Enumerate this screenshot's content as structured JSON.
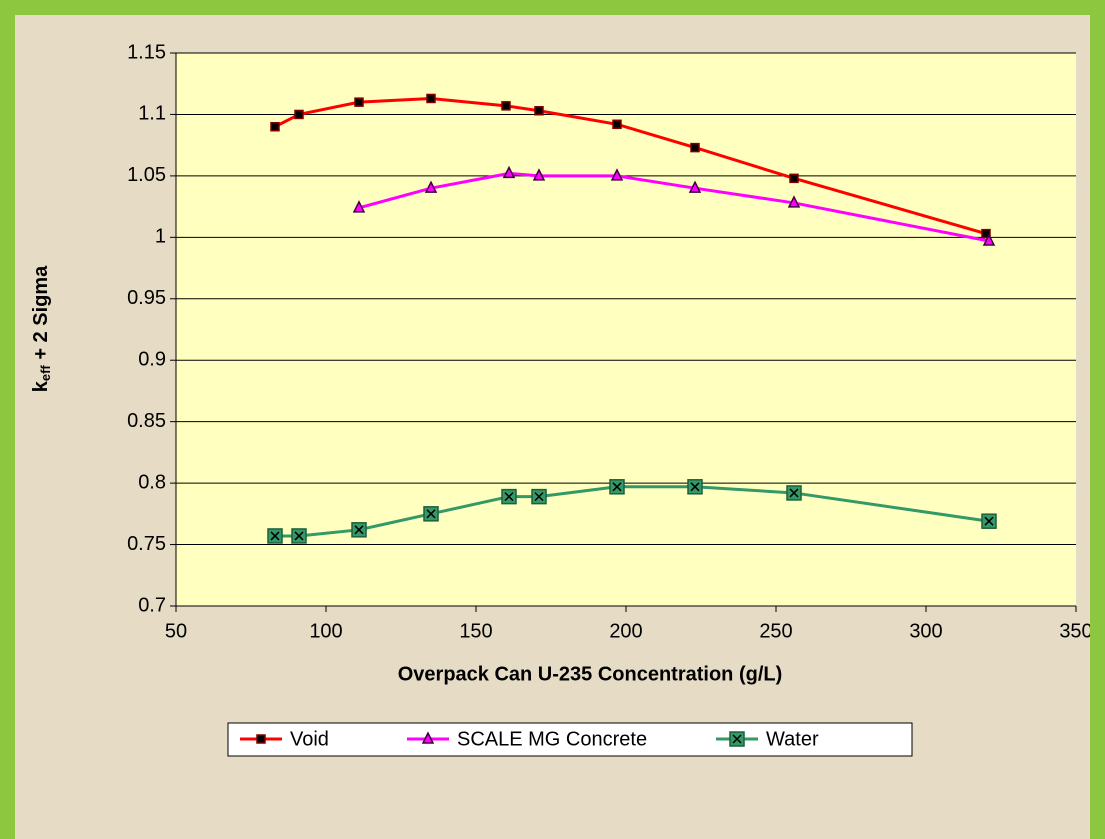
{
  "chart_data": {
    "type": "line",
    "xlabel": "Overpack Can U-235 Concentration (g/L)",
    "ylabel": {
      "base": "k",
      "sub": "eff",
      "rest": " + 2 Sigma"
    },
    "xlim": [
      50,
      350
    ],
    "xticks": [
      50,
      100,
      150,
      200,
      250,
      300,
      350
    ],
    "ylim": [
      0.7,
      1.15
    ],
    "yticks": [
      0.7,
      0.75,
      0.8,
      0.85,
      0.9,
      0.95,
      1,
      1.05,
      1.1,
      1.15
    ],
    "grid": true,
    "legend": "bottom",
    "series": [
      {
        "name": "Void",
        "color": "#ff0000",
        "marker": "square",
        "x": [
          83,
          91,
          111,
          135,
          160,
          171,
          197,
          223,
          256,
          320
        ],
        "values": [
          1.09,
          1.1,
          1.11,
          1.113,
          1.107,
          1.103,
          1.092,
          1.073,
          1.048,
          1.003
        ]
      },
      {
        "name": "SCALE MG Concrete",
        "color": "#ff00ff",
        "marker": "triangle",
        "x": [
          111,
          135,
          161,
          171,
          197,
          223,
          256,
          321
        ],
        "values": [
          1.024,
          1.04,
          1.052,
          1.05,
          1.05,
          1.04,
          1.028,
          0.997
        ]
      },
      {
        "name": "Water",
        "color": "#339966",
        "marker": "xsquare",
        "x": [
          83,
          91,
          111,
          135,
          161,
          171,
          197,
          223,
          256,
          321
        ],
        "values": [
          0.757,
          0.757,
          0.762,
          0.775,
          0.789,
          0.789,
          0.797,
          0.797,
          0.792,
          0.769
        ]
      }
    ]
  }
}
